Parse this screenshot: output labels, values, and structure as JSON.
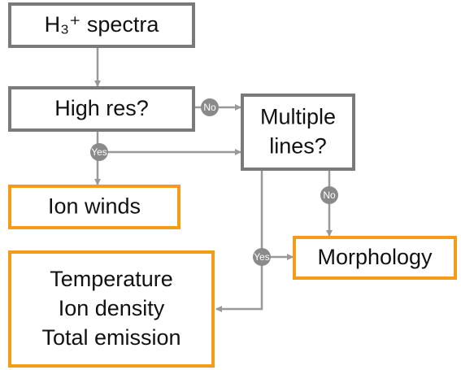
{
  "nodes": [
    {
      "lines": [
        "H₃⁺ spectra"
      ]
    },
    {
      "lines": [
        "High res?"
      ]
    },
    {
      "lines": [
        "Multiple",
        "lines?"
      ]
    },
    {
      "lines": [
        "Ion winds"
      ]
    },
    {
      "lines": [
        "Morphology"
      ]
    },
    {
      "lines": [
        "Temperature",
        "Ion density",
        "Total emission"
      ]
    }
  ],
  "edge_labels": [
    "No",
    "Yes",
    "No",
    "Yes"
  ]
}
